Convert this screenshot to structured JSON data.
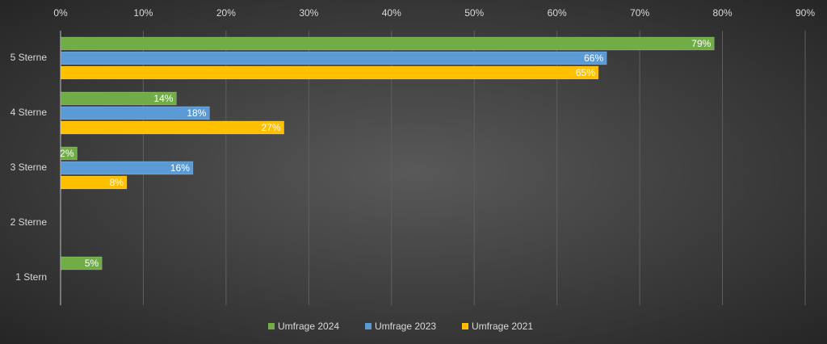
{
  "chart_data": {
    "type": "bar",
    "orientation": "horizontal",
    "categories": [
      "5 Sterne",
      "4 Sterne",
      "3 Sterne",
      "2 Sterne",
      "1 Stern"
    ],
    "series": [
      {
        "name": "Umfrage 2024",
        "color": "#70ad47",
        "values": [
          79,
          14,
          2,
          null,
          5
        ],
        "value_labels": [
          "79%",
          "14%",
          "2%",
          null,
          "5%"
        ]
      },
      {
        "name": "Umfrage 2023",
        "color": "#5b9bd5",
        "values": [
          66,
          18,
          16,
          null,
          null
        ],
        "value_labels": [
          "66%",
          "18%",
          "16%",
          null,
          null
        ]
      },
      {
        "name": "Umfrage 2021",
        "color": "#ffc000",
        "values": [
          65,
          27,
          8,
          null,
          null
        ],
        "value_labels": [
          "65%",
          "27%",
          "8%",
          null,
          null
        ]
      }
    ],
    "xlim": [
      0,
      90
    ],
    "xticks": [
      {
        "value": 0,
        "label": "0%"
      },
      {
        "value": 10,
        "label": "10%"
      },
      {
        "value": 20,
        "label": "20%"
      },
      {
        "value": 30,
        "label": "30%"
      },
      {
        "value": 40,
        "label": "40%"
      },
      {
        "value": 50,
        "label": "50%"
      },
      {
        "value": 60,
        "label": "60%"
      },
      {
        "value": 70,
        "label": "70%"
      },
      {
        "value": 80,
        "label": "80%"
      },
      {
        "value": 90,
        "label": "90%"
      }
    ],
    "grid": true,
    "legend": "bottom"
  }
}
